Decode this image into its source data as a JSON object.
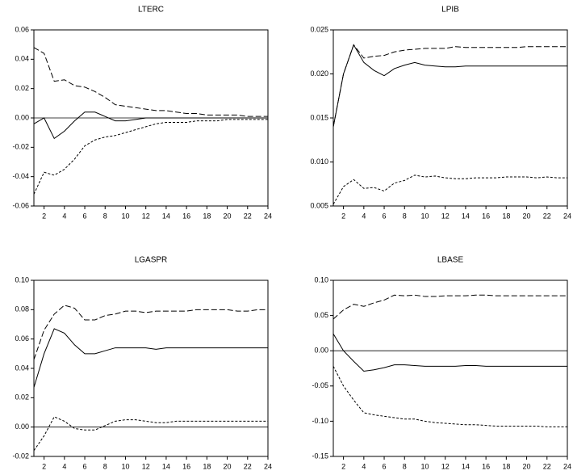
{
  "chart_data": [
    {
      "type": "line",
      "title": "LTERC",
      "x": [
        1,
        2,
        3,
        4,
        5,
        6,
        7,
        8,
        9,
        10,
        11,
        12,
        13,
        14,
        15,
        16,
        17,
        18,
        19,
        20,
        21,
        22,
        23,
        24
      ],
      "xlim": [
        1,
        24
      ],
      "xticks": [
        2,
        4,
        6,
        8,
        10,
        12,
        14,
        16,
        18,
        20,
        22,
        24
      ],
      "ylim": [
        -0.06,
        0.06
      ],
      "yticks": [
        -0.06,
        -0.04,
        -0.02,
        {
          "value": 0,
          "label": "0.00"
        },
        0.02,
        0.04,
        0.06
      ],
      "zero_line": true,
      "series": [
        {
          "color": "#000000",
          "style": "solid",
          "values": [
            -0.004,
            0.0,
            -0.014,
            -0.009,
            -0.002,
            0.004,
            0.004,
            0.001,
            -0.002,
            -0.002,
            -0.001,
            0.0,
            0.0,
            0.0,
            0.0,
            0.0,
            0.0,
            0.0,
            0.0,
            0.0,
            0.0,
            0.0,
            0.0,
            0.0
          ]
        },
        {
          "color": "#000000",
          "style": "long-dash",
          "values": [
            0.048,
            0.044,
            0.025,
            0.026,
            0.022,
            0.021,
            0.018,
            0.014,
            0.009,
            0.008,
            0.007,
            0.006,
            0.005,
            0.005,
            0.004,
            0.003,
            0.003,
            0.002,
            0.002,
            0.002,
            0.002,
            0.001,
            0.001,
            0.001
          ]
        },
        {
          "color": "#000000",
          "style": "short-dash",
          "values": [
            -0.052,
            -0.037,
            -0.039,
            -0.035,
            -0.028,
            -0.019,
            -0.015,
            -0.013,
            -0.012,
            -0.01,
            -0.008,
            -0.006,
            -0.004,
            -0.003,
            -0.003,
            -0.003,
            -0.002,
            -0.002,
            -0.002,
            -0.001,
            -0.001,
            -0.001,
            -0.001,
            -0.001
          ]
        }
      ]
    },
    {
      "type": "line",
      "title": "LPIB",
      "x": [
        1,
        2,
        3,
        4,
        5,
        6,
        7,
        8,
        9,
        10,
        11,
        12,
        13,
        14,
        15,
        16,
        17,
        18,
        19,
        20,
        21,
        22,
        23,
        24
      ],
      "xlim": [
        1,
        24
      ],
      "xticks": [
        2,
        4,
        6,
        8,
        10,
        12,
        14,
        16,
        18,
        20,
        22,
        24
      ],
      "ylim": [
        0.005,
        0.025
      ],
      "yticks": [
        0.005,
        {
          "value": 0.01,
          "label": "0.010"
        },
        0.015,
        {
          "value": 0.02,
          "label": "0.020"
        },
        0.025
      ],
      "zero_line": true,
      "series": [
        {
          "color": "#000000",
          "style": "solid",
          "values": [
            0.014,
            0.02,
            0.0233,
            0.0213,
            0.0204,
            0.0198,
            0.0206,
            0.021,
            0.0213,
            0.021,
            0.0209,
            0.0208,
            0.0208,
            0.0209,
            0.0209,
            0.0209,
            0.0209,
            0.0209,
            0.0209,
            0.0209,
            0.0209,
            0.0209,
            0.0209,
            0.0209
          ]
        },
        {
          "color": "#000000",
          "style": "long-dash",
          "values": [
            0.014,
            0.02,
            0.0233,
            0.0218,
            0.022,
            0.0221,
            0.0225,
            0.0227,
            0.0228,
            0.0229,
            0.0229,
            0.0229,
            0.0231,
            0.023,
            0.023,
            0.023,
            0.023,
            0.023,
            0.023,
            0.0231,
            0.0231,
            0.0231,
            0.0231,
            0.0231
          ]
        },
        {
          "color": "#000000",
          "style": "short-dash",
          "values": [
            0.0052,
            0.0072,
            0.008,
            0.007,
            0.0071,
            0.0067,
            0.0076,
            0.0079,
            0.0085,
            0.0083,
            0.0084,
            0.0082,
            0.0081,
            0.0081,
            0.0082,
            0.0082,
            0.0082,
            0.0083,
            0.0083,
            0.0083,
            0.0082,
            0.0083,
            0.0082,
            0.0082
          ]
        }
      ]
    },
    {
      "type": "line",
      "title": "LGASPR",
      "x": [
        1,
        2,
        3,
        4,
        5,
        6,
        7,
        8,
        9,
        10,
        11,
        12,
        13,
        14,
        15,
        16,
        17,
        18,
        19,
        20,
        21,
        22,
        23,
        24
      ],
      "xlim": [
        1,
        24
      ],
      "xticks": [
        2,
        4,
        6,
        8,
        10,
        12,
        14,
        16,
        18,
        20,
        22,
        24
      ],
      "ylim": [
        -0.02,
        0.1
      ],
      "yticks": [
        -0.02,
        {
          "value": 0,
          "label": "0.00"
        },
        0.02,
        0.04,
        0.06,
        0.08,
        {
          "value": 0.1,
          "label": "0.10"
        }
      ],
      "zero_line": true,
      "series": [
        {
          "color": "#000000",
          "style": "solid",
          "values": [
            0.027,
            0.05,
            0.067,
            0.064,
            0.056,
            0.05,
            0.05,
            0.052,
            0.054,
            0.054,
            0.054,
            0.054,
            0.053,
            0.054,
            0.054,
            0.054,
            0.054,
            0.054,
            0.054,
            0.054,
            0.054,
            0.054,
            0.054,
            0.054
          ]
        },
        {
          "color": "#000000",
          "style": "long-dash",
          "values": [
            0.046,
            0.066,
            0.077,
            0.083,
            0.081,
            0.073,
            0.073,
            0.076,
            0.077,
            0.079,
            0.079,
            0.078,
            0.079,
            0.079,
            0.079,
            0.079,
            0.08,
            0.08,
            0.08,
            0.08,
            0.079,
            0.079,
            0.08,
            0.08
          ]
        },
        {
          "color": "#000000",
          "style": "short-dash",
          "values": [
            -0.016,
            -0.006,
            0.007,
            0.004,
            -0.001,
            -0.002,
            -0.002,
            0.001,
            0.004,
            0.005,
            0.005,
            0.004,
            0.003,
            0.003,
            0.004,
            0.004,
            0.004,
            0.004,
            0.004,
            0.004,
            0.004,
            0.004,
            0.004,
            0.004
          ]
        }
      ]
    },
    {
      "type": "line",
      "title": "LBASE",
      "x": [
        1,
        2,
        3,
        4,
        5,
        6,
        7,
        8,
        9,
        10,
        11,
        12,
        13,
        14,
        15,
        16,
        17,
        18,
        19,
        20,
        21,
        22,
        23,
        24
      ],
      "xlim": [
        1,
        24
      ],
      "xticks": [
        2,
        4,
        6,
        8,
        10,
        12,
        14,
        16,
        18,
        20,
        22,
        24
      ],
      "ylim": [
        -0.15,
        0.1
      ],
      "yticks": [
        -0.15,
        {
          "value": -0.1,
          "label": "-0.10"
        },
        -0.05,
        {
          "value": 0,
          "label": "0.00"
        },
        0.05,
        {
          "value": 0.1,
          "label": "0.10"
        }
      ],
      "zero_line": true,
      "series": [
        {
          "color": "#000000",
          "style": "solid",
          "values": [
            0.024,
            0.0,
            -0.015,
            -0.029,
            -0.027,
            -0.024,
            -0.02,
            -0.02,
            -0.021,
            -0.022,
            -0.022,
            -0.022,
            -0.022,
            -0.021,
            -0.021,
            -0.022,
            -0.022,
            -0.022,
            -0.022,
            -0.022,
            -0.022,
            -0.022,
            -0.022,
            -0.022
          ]
        },
        {
          "color": "#000000",
          "style": "long-dash",
          "values": [
            0.045,
            0.058,
            0.066,
            0.063,
            0.068,
            0.072,
            0.079,
            0.078,
            0.079,
            0.077,
            0.077,
            0.078,
            0.078,
            0.078,
            0.079,
            0.079,
            0.078,
            0.078,
            0.078,
            0.078,
            0.078,
            0.078,
            0.078,
            0.078
          ]
        },
        {
          "color": "#000000",
          "style": "short-dash",
          "values": [
            -0.022,
            -0.05,
            -0.07,
            -0.088,
            -0.091,
            -0.093,
            -0.095,
            -0.097,
            -0.097,
            -0.1,
            -0.102,
            -0.103,
            -0.104,
            -0.105,
            -0.105,
            -0.106,
            -0.107,
            -0.107,
            -0.107,
            -0.107,
            -0.107,
            -0.108,
            -0.108,
            -0.108
          ]
        }
      ]
    }
  ]
}
